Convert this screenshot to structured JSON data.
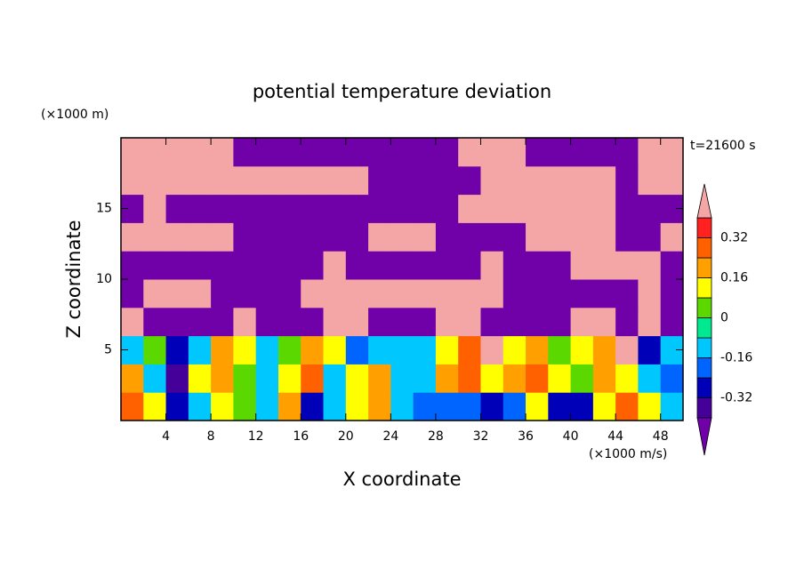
{
  "chart_data": {
    "type": "contour",
    "title": "potential temperature deviation",
    "y_unit": "(×1000 m)",
    "x_unit": "(×1000 m/s)",
    "annotation": "t=21600 s",
    "xlabel": "X coordinate",
    "ylabel": "Z coordinate",
    "x": [
      1,
      3,
      5,
      7,
      9,
      11,
      13,
      15,
      17,
      19,
      21,
      23,
      25,
      27,
      29,
      31,
      33,
      35,
      37,
      39,
      41,
      43,
      45,
      47,
      49
    ],
    "y": [
      1,
      3,
      5,
      7,
      9,
      11,
      13,
      15,
      17,
      19
    ],
    "z": [
      [
        0.3,
        0.1,
        -0.3,
        -0.1,
        0.1,
        0,
        -0.1,
        0.2,
        -0.3,
        -0.1,
        0.1,
        0.2,
        -0.1,
        -0.2,
        -0.2,
        -0.2,
        -0.3,
        -0.2,
        0.1,
        -0.3,
        -0.3,
        0.1,
        0.3,
        0.1,
        -0.1
      ],
      [
        0.2,
        -0.1,
        -0.35,
        0.1,
        0.2,
        0,
        -0.1,
        0.1,
        0.3,
        -0.1,
        0.1,
        0.2,
        -0.1,
        -0.1,
        0.2,
        0.3,
        0.1,
        0.2,
        0.3,
        0.1,
        0,
        0.2,
        0.1,
        -0.1,
        -0.2
      ],
      [
        -0.1,
        0,
        -0.3,
        -0.1,
        0.2,
        0.1,
        -0.1,
        0,
        0.2,
        0.1,
        -0.2,
        -0.1,
        -0.1,
        -0.1,
        0.1,
        0.3,
        0.45,
        0.1,
        0.2,
        0,
        0.1,
        0.2,
        0.45,
        -0.3,
        -0.1
      ],
      [
        0.45,
        -0.5,
        -0.5,
        -0.5,
        -0.5,
        0.45,
        -0.5,
        -0.5,
        -0.5,
        0.45,
        0.45,
        -0.5,
        -0.5,
        -0.5,
        0.45,
        0.45,
        -0.5,
        -0.5,
        -0.5,
        -0.5,
        0.45,
        0.45,
        -0.5,
        0.45,
        -0.5
      ],
      [
        -0.5,
        0.45,
        0.45,
        0.45,
        -0.5,
        -0.5,
        -0.5,
        -0.5,
        0.45,
        0.45,
        0.45,
        0.45,
        0.45,
        0.45,
        0.45,
        0.45,
        0.45,
        -0.5,
        -0.5,
        -0.5,
        -0.5,
        -0.5,
        -0.5,
        0.45,
        -0.5
      ],
      [
        -0.5,
        -0.5,
        -0.5,
        -0.5,
        -0.5,
        -0.5,
        -0.5,
        -0.5,
        -0.5,
        0.45,
        -0.5,
        -0.5,
        -0.5,
        -0.5,
        -0.5,
        -0.5,
        0.45,
        -0.5,
        -0.5,
        -0.5,
        0.45,
        0.45,
        0.45,
        0.45,
        -0.5
      ],
      [
        0.45,
        0.45,
        0.45,
        0.45,
        0.45,
        -0.5,
        -0.5,
        -0.5,
        -0.5,
        -0.5,
        -0.5,
        0.45,
        0.45,
        0.45,
        -0.5,
        -0.5,
        -0.5,
        -0.5,
        0.45,
        0.45,
        0.45,
        0.45,
        -0.5,
        -0.5,
        0.45
      ],
      [
        -0.5,
        0.45,
        -0.5,
        -0.5,
        -0.5,
        -0.5,
        -0.5,
        -0.5,
        -0.5,
        -0.5,
        -0.5,
        -0.5,
        -0.5,
        -0.5,
        -0.5,
        0.45,
        0.45,
        0.45,
        0.45,
        0.45,
        0.45,
        0.45,
        -0.5,
        -0.5,
        -0.5
      ],
      [
        0.45,
        0.45,
        0.45,
        0.45,
        0.45,
        0.45,
        0.45,
        0.45,
        0.45,
        0.45,
        0.45,
        -0.5,
        -0.5,
        -0.5,
        -0.5,
        -0.5,
        0.45,
        0.45,
        0.45,
        0.45,
        0.45,
        0.45,
        -0.5,
        0.45,
        0.45
      ],
      [
        0.45,
        0.45,
        0.45,
        0.45,
        0.45,
        -0.5,
        -0.5,
        -0.5,
        -0.5,
        -0.5,
        -0.5,
        -0.5,
        -0.5,
        -0.5,
        -0.5,
        0.45,
        0.45,
        0.45,
        -0.5,
        -0.5,
        -0.5,
        -0.5,
        -0.5,
        0.45,
        0.45
      ]
    ],
    "levels": [
      -0.4,
      -0.32,
      -0.24,
      -0.16,
      -0.08,
      0,
      0.08,
      0.16,
      0.24,
      0.32,
      0.4
    ],
    "colors": [
      "#7000a8",
      "#46009a",
      "#0000b8",
      "#0064ff",
      "#00c8ff",
      "#00e890",
      "#5ad800",
      "#ffff00",
      "#ffa000",
      "#ff6000",
      "#ff2020",
      "#f4a6a6"
    ],
    "xlim": [
      0,
      50
    ],
    "ylim": [
      0,
      20
    ],
    "xticks": [
      4,
      8,
      12,
      16,
      20,
      24,
      28,
      32,
      36,
      40,
      44,
      48
    ],
    "yticks": [
      5,
      10,
      15
    ],
    "colorbar_ticks": [
      0.32,
      0.16,
      0,
      -0.16,
      -0.32
    ]
  }
}
